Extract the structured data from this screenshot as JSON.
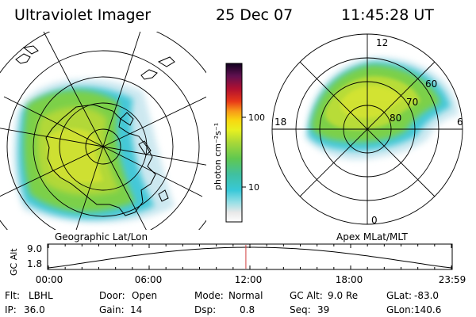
{
  "header": {
    "instrument": "Ultraviolet Imager",
    "date": "25 Dec 07",
    "time": "11:45:28 UT"
  },
  "colorbar": {
    "unit_label": "photon cm⁻²s⁻¹",
    "tick_labels": [
      "100",
      "10"
    ],
    "scale": "log"
  },
  "left_panel": {
    "caption": "Geographic Lat/Lon"
  },
  "right_panel": {
    "caption": "Apex MLat/MLT",
    "mlt_labels": [
      "12",
      "18",
      "6",
      "0"
    ],
    "mlat_labels": [
      "60",
      "70",
      "80"
    ]
  },
  "altitude_plot": {
    "ylabel": "GC Alt",
    "y_tick_labels": [
      "9.0",
      "1.8"
    ],
    "x_tick_labels": [
      "00:00",
      "06:00",
      "12:00",
      "18:00",
      "23:59"
    ],
    "current_time_hours": 11.76
  },
  "status": [
    {
      "label": "Flt:",
      "value": "LBHL"
    },
    {
      "label": "Door:",
      "value": "Open"
    },
    {
      "label": "Mode:",
      "value": "Normal"
    },
    {
      "label": "GC Alt:",
      "value": "9.0 Re"
    },
    {
      "label": "GLat:",
      "value": "-83.0"
    },
    {
      "label": "IP:",
      "value": "36.0"
    },
    {
      "label": "Gain:",
      "value": "14"
    },
    {
      "label": "Dsp:",
      "value": "0.8"
    },
    {
      "label": "Seq:",
      "value": "39"
    },
    {
      "label": "GLon:",
      "value": "140.6"
    }
  ],
  "colors": {
    "marker": "#d04040",
    "grid": "#000000",
    "haze": "#c8dde8"
  }
}
